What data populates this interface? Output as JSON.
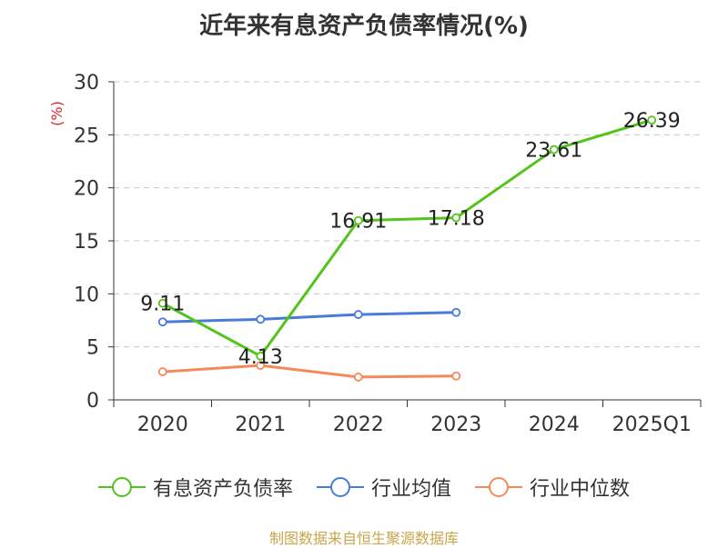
{
  "title": "近年来有息资产负债率情况(%)",
  "footer": "制图数据来自恒生聚源数据库",
  "chart_data": {
    "type": "line",
    "title": "近年来有息资产负债率情况(%)",
    "ylabel": "(%)",
    "xlabel": "",
    "categories": [
      "2020",
      "2021",
      "2022",
      "2023",
      "2024",
      "2025Q1"
    ],
    "ylim": [
      0,
      30
    ],
    "yticks": [
      0,
      5,
      10,
      15,
      20,
      25,
      30
    ],
    "grid": true,
    "legend_position": "bottom",
    "series": [
      {
        "name": "有息资产负债率",
        "color": "#52c41a",
        "values": [
          9.11,
          4.13,
          16.91,
          17.18,
          23.61,
          26.39
        ],
        "labels": [
          "9.11",
          "4.13",
          "16.91",
          "17.18",
          "23.61",
          "26.39"
        ]
      },
      {
        "name": "行业均值",
        "color": "#4a7bd6",
        "values": [
          7.35,
          7.6,
          8.05,
          8.25,
          null,
          null
        ]
      },
      {
        "name": "行业中位数",
        "color": "#f5895a",
        "values": [
          2.65,
          3.25,
          2.15,
          2.25,
          null,
          null
        ]
      }
    ]
  }
}
